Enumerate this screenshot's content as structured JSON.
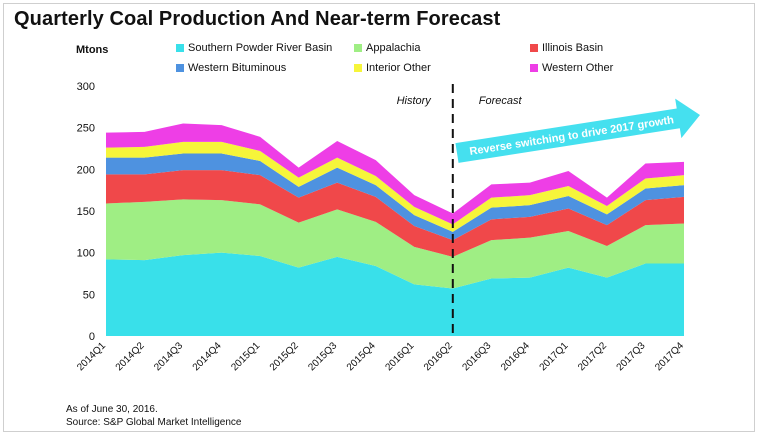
{
  "colors": {
    "Southern Powder River Basin": "#39e0ea",
    "Appalachia": "#9fee84",
    "Illinois Basin": "#f0484a",
    "Western Bituminous": "#4e92e0",
    "Interior Other": "#f6f53a",
    "Western Other": "#ee3ee6",
    "arrow": "#45e0ef"
  },
  "header": {
    "title": "Quarterly Coal Production And Near-term Forecast",
    "y_unit": "Mtons"
  },
  "annotations": {
    "history": "History",
    "forecast": "Forecast",
    "arrow_text": "Reverse switching to drive 2017 growth"
  },
  "footer": {
    "note": "As of June 30, 2016.",
    "source": "Source: S&P Global Market Intelligence"
  },
  "chart_data": {
    "type": "area",
    "stacked": true,
    "categories": [
      "2014Q1",
      "2014Q2",
      "2014Q3",
      "2014Q4",
      "2015Q1",
      "2015Q2",
      "2015Q3",
      "2015Q4",
      "2016Q1",
      "2016Q2",
      "2016Q3",
      "2016Q4",
      "2017Q1",
      "2017Q2",
      "2017Q3",
      "2017Q4"
    ],
    "ylim": [
      0,
      300
    ],
    "yticks": [
      0,
      50,
      100,
      150,
      200,
      250,
      300
    ],
    "forecast_divider_after": "2016Q2",
    "legend_position": "top",
    "series": [
      {
        "name": "Southern Powder River Basin",
        "values": [
          92,
          91,
          97,
          100,
          96,
          82,
          95,
          84,
          62,
          57,
          69,
          70,
          82,
          70,
          87,
          87
        ]
      },
      {
        "name": "Appalachia",
        "values": [
          67,
          70,
          67,
          63,
          62,
          54,
          57,
          53,
          45,
          38,
          46,
          48,
          44,
          38,
          46,
          48
        ]
      },
      {
        "name": "Illinois Basin",
        "values": [
          35,
          33,
          35,
          36,
          35,
          30,
          32,
          30,
          25,
          20,
          25,
          25,
          27,
          25,
          30,
          32
        ]
      },
      {
        "name": "Western Bituminous",
        "values": [
          20,
          20,
          20,
          20,
          17,
          13,
          18,
          14,
          13,
          10,
          14,
          14,
          15,
          13,
          14,
          14
        ]
      },
      {
        "name": "Interior Other",
        "values": [
          12,
          13,
          14,
          14,
          12,
          11,
          12,
          11,
          10,
          9,
          12,
          12,
          12,
          10,
          12,
          12
        ]
      },
      {
        "name": "Western Other",
        "values": [
          18,
          18,
          22,
          20,
          17,
          12,
          20,
          19,
          14,
          13,
          16,
          15,
          18,
          10,
          18,
          16
        ]
      }
    ]
  }
}
